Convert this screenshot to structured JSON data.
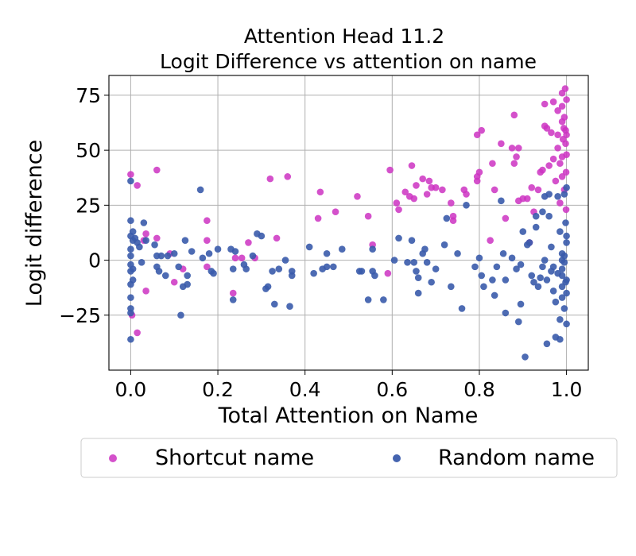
{
  "chart_data": {
    "type": "scatter",
    "title": [
      "Attention Head 11.2",
      "Logit Difference vs attention on name"
    ],
    "xlabel": "Total Attention on Name",
    "ylabel": "Logit difference",
    "xlim": [
      -0.05,
      1.05
    ],
    "ylim": [
      -50,
      84
    ],
    "xticks": [
      0.0,
      0.2,
      0.4,
      0.6,
      0.8,
      1.0
    ],
    "xtick_labels": [
      "0.0",
      "0.2",
      "0.4",
      "0.6",
      "0.8",
      "1.0"
    ],
    "yticks": [
      -25,
      0,
      25,
      50,
      75
    ],
    "ytick_labels": [
      "−25",
      "0",
      "25",
      "50",
      "75"
    ],
    "grid": true,
    "legend_position": "bottom",
    "series": [
      {
        "name": "Shortcut name",
        "color": "#cc33c2",
        "points": [
          [
            0.0,
            39
          ],
          [
            0.003,
            -25
          ],
          [
            0.015,
            34
          ],
          [
            0.015,
            -33
          ],
          [
            0.03,
            9
          ],
          [
            0.035,
            -14
          ],
          [
            0.035,
            12
          ],
          [
            0.06,
            41
          ],
          [
            0.06,
            10
          ],
          [
            0.09,
            3
          ],
          [
            0.1,
            -10
          ],
          [
            0.12,
            -4
          ],
          [
            0.175,
            18
          ],
          [
            0.175,
            9
          ],
          [
            0.175,
            -3
          ],
          [
            0.235,
            -15
          ],
          [
            0.24,
            1
          ],
          [
            0.255,
            1
          ],
          [
            0.27,
            8
          ],
          [
            0.285,
            1
          ],
          [
            0.32,
            37
          ],
          [
            0.335,
            10
          ],
          [
            0.36,
            38
          ],
          [
            0.43,
            19
          ],
          [
            0.435,
            31
          ],
          [
            0.47,
            22
          ],
          [
            0.52,
            29
          ],
          [
            0.545,
            20
          ],
          [
            0.555,
            7
          ],
          [
            0.59,
            -6
          ],
          [
            0.595,
            41
          ],
          [
            0.61,
            26
          ],
          [
            0.615,
            23
          ],
          [
            0.63,
            31
          ],
          [
            0.64,
            29
          ],
          [
            0.645,
            43
          ],
          [
            0.65,
            28
          ],
          [
            0.655,
            34
          ],
          [
            0.67,
            37
          ],
          [
            0.68,
            30
          ],
          [
            0.685,
            36
          ],
          [
            0.69,
            33
          ],
          [
            0.7,
            33
          ],
          [
            0.715,
            32
          ],
          [
            0.735,
            26
          ],
          [
            0.74,
            18
          ],
          [
            0.74,
            20
          ],
          [
            0.765,
            32
          ],
          [
            0.77,
            30
          ],
          [
            0.795,
            57
          ],
          [
            0.795,
            36
          ],
          [
            0.795,
            38
          ],
          [
            0.8,
            40
          ],
          [
            0.805,
            59
          ],
          [
            0.825,
            9
          ],
          [
            0.83,
            44
          ],
          [
            0.835,
            32
          ],
          [
            0.85,
            53
          ],
          [
            0.86,
            19
          ],
          [
            0.875,
            51
          ],
          [
            0.88,
            66
          ],
          [
            0.88,
            44
          ],
          [
            0.885,
            47
          ],
          [
            0.89,
            51
          ],
          [
            0.89,
            27
          ],
          [
            0.9,
            28
          ],
          [
            0.91,
            28
          ],
          [
            0.915,
            8
          ],
          [
            0.92,
            33
          ],
          [
            0.925,
            22
          ],
          [
            0.935,
            32
          ],
          [
            0.94,
            40
          ],
          [
            0.945,
            41
          ],
          [
            0.95,
            61
          ],
          [
            0.95,
            71
          ],
          [
            0.955,
            60
          ],
          [
            0.96,
            43
          ],
          [
            0.965,
            58
          ],
          [
            0.97,
            72
          ],
          [
            0.97,
            46
          ],
          [
            0.975,
            36
          ],
          [
            0.98,
            57
          ],
          [
            0.98,
            68
          ],
          [
            0.98,
            51
          ],
          [
            0.985,
            44
          ],
          [
            0.985,
            26
          ],
          [
            0.99,
            63
          ],
          [
            0.99,
            76
          ],
          [
            0.99,
            70
          ],
          [
            0.99,
            47
          ],
          [
            0.99,
            38
          ],
          [
            0.992,
            55
          ],
          [
            0.994,
            60
          ],
          [
            0.995,
            65
          ],
          [
            0.995,
            32
          ],
          [
            0.997,
            78
          ],
          [
            0.998,
            59
          ],
          [
            0.998,
            53
          ],
          [
            0.999,
            40
          ],
          [
            0.999,
            23
          ],
          [
            1.0,
            73
          ],
          [
            1.0,
            48
          ],
          [
            1.0,
            57
          ]
        ]
      },
      {
        "name": "Random name",
        "color": "#3a5bab",
        "points": [
          [
            0.0,
            36
          ],
          [
            0.0,
            18
          ],
          [
            0.0,
            11
          ],
          [
            0.0,
            5
          ],
          [
            0.0,
            2
          ],
          [
            0.0,
            -2
          ],
          [
            0.0,
            -5
          ],
          [
            0.0,
            -11
          ],
          [
            0.0,
            -17
          ],
          [
            0.0,
            -22
          ],
          [
            0.0,
            -24
          ],
          [
            0.0,
            -36
          ],
          [
            0.005,
            13
          ],
          [
            0.005,
            9
          ],
          [
            0.005,
            -4
          ],
          [
            0.005,
            -9
          ],
          [
            0.01,
            10
          ],
          [
            0.015,
            8
          ],
          [
            0.02,
            6
          ],
          [
            0.025,
            -1
          ],
          [
            0.03,
            17
          ],
          [
            0.035,
            9
          ],
          [
            0.055,
            7
          ],
          [
            0.06,
            2
          ],
          [
            0.06,
            -3
          ],
          [
            0.065,
            -5
          ],
          [
            0.07,
            2
          ],
          [
            0.08,
            -7
          ],
          [
            0.085,
            2
          ],
          [
            0.1,
            3
          ],
          [
            0.11,
            -3
          ],
          [
            0.115,
            -25
          ],
          [
            0.12,
            -12
          ],
          [
            0.125,
            9
          ],
          [
            0.13,
            -7
          ],
          [
            0.13,
            -11
          ],
          [
            0.14,
            4
          ],
          [
            0.16,
            32
          ],
          [
            0.165,
            1
          ],
          [
            0.18,
            3
          ],
          [
            0.185,
            -5
          ],
          [
            0.19,
            -6
          ],
          [
            0.2,
            5
          ],
          [
            0.23,
            5
          ],
          [
            0.235,
            -4
          ],
          [
            0.235,
            -18
          ],
          [
            0.24,
            4
          ],
          [
            0.26,
            -2
          ],
          [
            0.265,
            -4
          ],
          [
            0.28,
            2
          ],
          [
            0.29,
            12
          ],
          [
            0.3,
            11
          ],
          [
            0.31,
            -13
          ],
          [
            0.315,
            -12
          ],
          [
            0.325,
            -5
          ],
          [
            0.33,
            -20
          ],
          [
            0.34,
            -4
          ],
          [
            0.355,
            0
          ],
          [
            0.365,
            -21
          ],
          [
            0.37,
            -5
          ],
          [
            0.37,
            -7
          ],
          [
            0.41,
            6
          ],
          [
            0.42,
            -6
          ],
          [
            0.44,
            -4
          ],
          [
            0.45,
            3
          ],
          [
            0.45,
            -3
          ],
          [
            0.465,
            -3
          ],
          [
            0.485,
            5
          ],
          [
            0.525,
            -5
          ],
          [
            0.53,
            -5
          ],
          [
            0.545,
            -18
          ],
          [
            0.555,
            5
          ],
          [
            0.555,
            -5
          ],
          [
            0.56,
            -7
          ],
          [
            0.58,
            -18
          ],
          [
            0.605,
            0
          ],
          [
            0.615,
            10
          ],
          [
            0.635,
            -1
          ],
          [
            0.645,
            9
          ],
          [
            0.65,
            -1
          ],
          [
            0.655,
            -5
          ],
          [
            0.66,
            -8
          ],
          [
            0.66,
            -15
          ],
          [
            0.67,
            3
          ],
          [
            0.675,
            5
          ],
          [
            0.68,
            -1
          ],
          [
            0.69,
            -10
          ],
          [
            0.7,
            -4
          ],
          [
            0.72,
            7
          ],
          [
            0.725,
            19
          ],
          [
            0.735,
            -12
          ],
          [
            0.75,
            3
          ],
          [
            0.76,
            -22
          ],
          [
            0.77,
            25
          ],
          [
            0.79,
            -3
          ],
          [
            0.8,
            1
          ],
          [
            0.805,
            -7
          ],
          [
            0.81,
            -12
          ],
          [
            0.83,
            -9
          ],
          [
            0.835,
            -16
          ],
          [
            0.84,
            -3
          ],
          [
            0.85,
            27
          ],
          [
            0.855,
            3
          ],
          [
            0.86,
            -24
          ],
          [
            0.86,
            -9
          ],
          [
            0.875,
            1
          ],
          [
            0.885,
            -4
          ],
          [
            0.89,
            -28
          ],
          [
            0.895,
            -2
          ],
          [
            0.895,
            -20
          ],
          [
            0.9,
            13
          ],
          [
            0.905,
            -44
          ],
          [
            0.91,
            7
          ],
          [
            0.915,
            8
          ],
          [
            0.92,
            -7
          ],
          [
            0.925,
            -10
          ],
          [
            0.93,
            20
          ],
          [
            0.93,
            15
          ],
          [
            0.935,
            -12
          ],
          [
            0.94,
            -8
          ],
          [
            0.945,
            22
          ],
          [
            0.945,
            -3
          ],
          [
            0.95,
            29
          ],
          [
            0.95,
            0
          ],
          [
            0.955,
            -38
          ],
          [
            0.955,
            -9
          ],
          [
            0.96,
            30
          ],
          [
            0.96,
            20
          ],
          [
            0.965,
            6
          ],
          [
            0.965,
            -5
          ],
          [
            0.97,
            -3
          ],
          [
            0.97,
            -14
          ],
          [
            0.975,
            -19
          ],
          [
            0.975,
            -35
          ],
          [
            0.98,
            29
          ],
          [
            0.98,
            -6
          ],
          [
            0.985,
            -36
          ],
          [
            0.985,
            13
          ],
          [
            0.985,
            -27
          ],
          [
            0.99,
            3
          ],
          [
            0.99,
            0
          ],
          [
            0.99,
            -4
          ],
          [
            0.99,
            -7
          ],
          [
            0.99,
            -12
          ],
          [
            0.99,
            -17
          ],
          [
            0.995,
            30
          ],
          [
            0.995,
            2
          ],
          [
            0.995,
            -1
          ],
          [
            0.995,
            -22
          ],
          [
            0.998,
            17
          ],
          [
            0.998,
            -10
          ],
          [
            1.0,
            33
          ],
          [
            1.0,
            11
          ],
          [
            1.0,
            8
          ],
          [
            1.0,
            -9
          ],
          [
            1.0,
            -15
          ],
          [
            1.0,
            -29
          ]
        ]
      }
    ]
  }
}
